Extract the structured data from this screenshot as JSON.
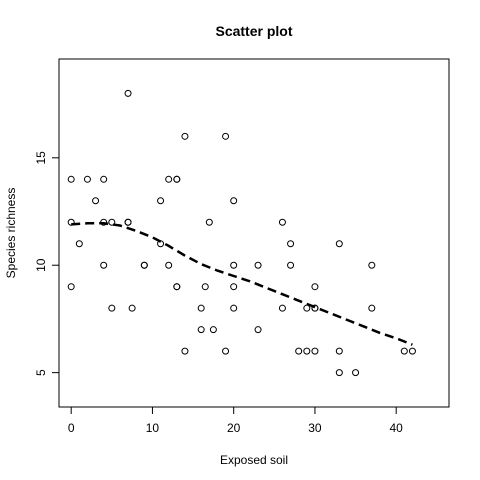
{
  "chart_data": {
    "type": "scatter",
    "title": "Scatter plot",
    "xlabel": "Exposed soil",
    "ylabel": "Species richness",
    "xlim": [
      -1.5,
      46.5
    ],
    "ylim": [
      3.4,
      19.6
    ],
    "x_ticks": [
      0,
      10,
      20,
      30,
      40
    ],
    "y_ticks": [
      5,
      10,
      15
    ],
    "grid": false,
    "legend": "none",
    "points": [
      {
        "x": 0,
        "y": 14
      },
      {
        "x": 0,
        "y": 12
      },
      {
        "x": 0,
        "y": 9
      },
      {
        "x": 1,
        "y": 11
      },
      {
        "x": 2,
        "y": 14
      },
      {
        "x": 3,
        "y": 13
      },
      {
        "x": 4,
        "y": 14
      },
      {
        "x": 4,
        "y": 12
      },
      {
        "x": 4,
        "y": 10
      },
      {
        "x": 5,
        "y": 12
      },
      {
        "x": 5,
        "y": 8
      },
      {
        "x": 7,
        "y": 18
      },
      {
        "x": 7,
        "y": 12
      },
      {
        "x": 7,
        "y": 12
      },
      {
        "x": 7.5,
        "y": 8
      },
      {
        "x": 9,
        "y": 10
      },
      {
        "x": 9,
        "y": 10
      },
      {
        "x": 11,
        "y": 13
      },
      {
        "x": 11,
        "y": 11
      },
      {
        "x": 12,
        "y": 14
      },
      {
        "x": 12,
        "y": 10
      },
      {
        "x": 13,
        "y": 14
      },
      {
        "x": 13,
        "y": 14
      },
      {
        "x": 13,
        "y": 9
      },
      {
        "x": 13,
        "y": 9
      },
      {
        "x": 14,
        "y": 16
      },
      {
        "x": 14,
        "y": 6
      },
      {
        "x": 16,
        "y": 8
      },
      {
        "x": 16,
        "y": 7
      },
      {
        "x": 16.5,
        "y": 9
      },
      {
        "x": 17,
        "y": 12
      },
      {
        "x": 17.5,
        "y": 7
      },
      {
        "x": 19,
        "y": 16
      },
      {
        "x": 19,
        "y": 6
      },
      {
        "x": 20,
        "y": 13
      },
      {
        "x": 20,
        "y": 10
      },
      {
        "x": 20,
        "y": 9
      },
      {
        "x": 20,
        "y": 8
      },
      {
        "x": 23,
        "y": 10
      },
      {
        "x": 23,
        "y": 7
      },
      {
        "x": 26,
        "y": 12
      },
      {
        "x": 26,
        "y": 8
      },
      {
        "x": 27,
        "y": 11
      },
      {
        "x": 27,
        "y": 10
      },
      {
        "x": 28,
        "y": 6
      },
      {
        "x": 29,
        "y": 8
      },
      {
        "x": 29,
        "y": 6
      },
      {
        "x": 30,
        "y": 9
      },
      {
        "x": 30,
        "y": 8
      },
      {
        "x": 30,
        "y": 8
      },
      {
        "x": 30,
        "y": 6
      },
      {
        "x": 33,
        "y": 11
      },
      {
        "x": 33,
        "y": 6
      },
      {
        "x": 33,
        "y": 5
      },
      {
        "x": 35,
        "y": 5
      },
      {
        "x": 37,
        "y": 10
      },
      {
        "x": 37,
        "y": 8
      },
      {
        "x": 41,
        "y": 6
      },
      {
        "x": 42,
        "y": 6
      }
    ],
    "smooth_line": {
      "style": "dashed",
      "x": [
        0,
        2,
        4,
        6,
        8,
        10,
        12,
        14,
        16,
        18,
        20,
        22,
        24,
        26,
        28,
        30,
        32,
        34,
        36,
        38,
        40,
        42
      ],
      "y": [
        11.9,
        11.95,
        11.95,
        11.85,
        11.6,
        11.3,
        10.9,
        10.45,
        10.05,
        9.75,
        9.5,
        9.25,
        8.95,
        8.65,
        8.35,
        8.05,
        7.75,
        7.45,
        7.15,
        6.85,
        6.6,
        6.3
      ]
    }
  }
}
